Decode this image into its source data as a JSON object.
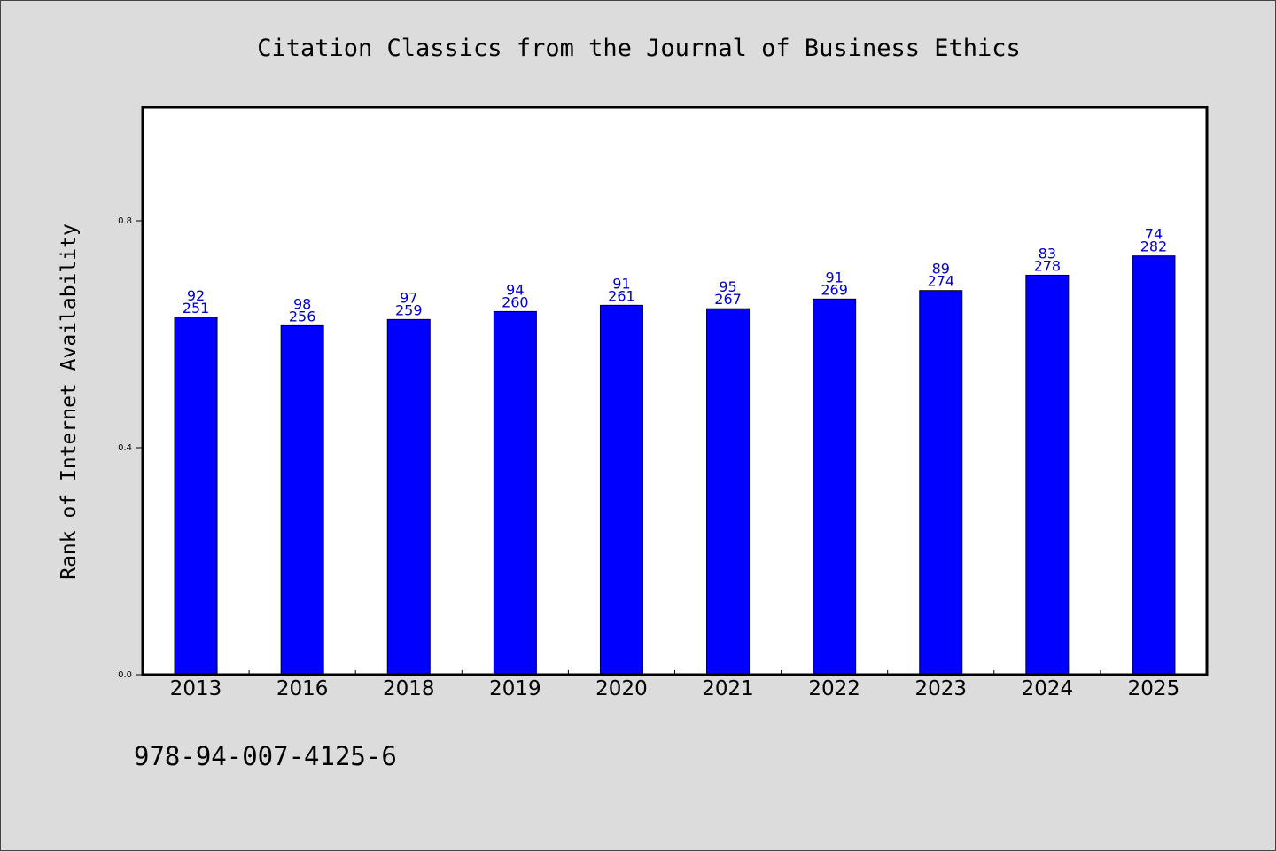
{
  "chart_data": {
    "type": "bar",
    "title": "Citation Classics from the Journal of Business Ethics",
    "xlabel": "",
    "ylabel": "Rank of Internet Availability",
    "categories": [
      "2013",
      "2016",
      "2018",
      "2019",
      "2020",
      "2021",
      "2022",
      "2023",
      "2024",
      "2025"
    ],
    "values": [
      0.63,
      0.615,
      0.626,
      0.64,
      0.651,
      0.645,
      0.662,
      0.677,
      0.704,
      0.738
    ],
    "labels_top": [
      "92",
      "98",
      "97",
      "94",
      "91",
      "95",
      "91",
      "89",
      "83",
      "74"
    ],
    "labels_bottom": [
      "251",
      "256",
      "259",
      "260",
      "261",
      "267",
      "269",
      "274",
      "278",
      "282"
    ],
    "ylim": [
      0.0,
      1.0
    ],
    "yticks": [
      "0.0",
      "0.4",
      "0.8"
    ],
    "ytick_values": [
      0.0,
      0.4,
      0.8
    ],
    "grid": false,
    "legend": "none",
    "colors": {
      "bar": "#0000ff",
      "bar_edge": "#000000",
      "data_label": "#0000cc"
    }
  },
  "footer": {
    "isbn": "978-94-007-4125-6"
  }
}
